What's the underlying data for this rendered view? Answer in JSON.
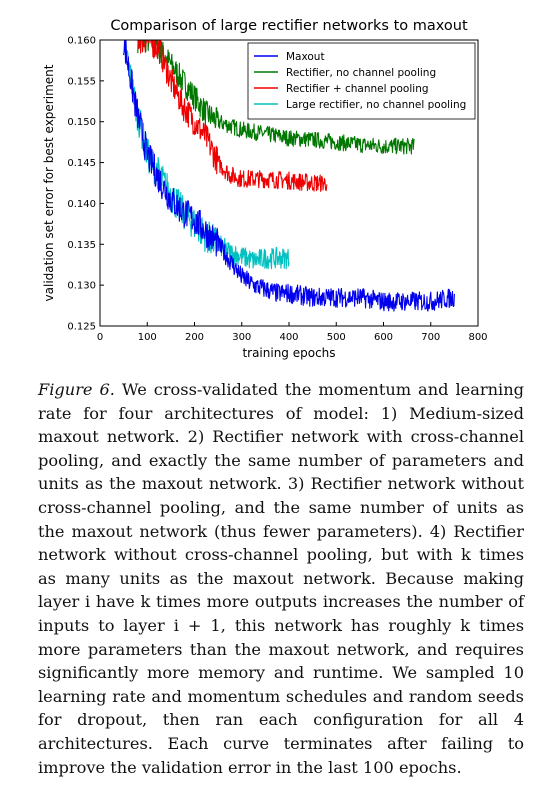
{
  "chart_data": {
    "type": "line",
    "title": "Comparison of large rectifier networks to maxout",
    "xlabel": "training epochs",
    "ylabel": "validation set error for best experiment",
    "xlim": [
      0,
      800
    ],
    "ylim": [
      0.125,
      0.16
    ],
    "x_ticks": [
      "0",
      "100",
      "200",
      "300",
      "400",
      "500",
      "600",
      "700",
      "800"
    ],
    "y_ticks": [
      "0.125",
      "0.130",
      "0.135",
      "0.140",
      "0.145",
      "0.150",
      "0.155",
      "0.160"
    ],
    "legend_position": "top-right",
    "grid": false,
    "series": [
      {
        "name": "Maxout",
        "color": "#0000ee",
        "x": [
          50,
          75,
          100,
          125,
          150,
          175,
          200,
          225,
          250,
          275,
          300,
          325,
          350,
          375,
          400,
          450,
          500,
          550,
          600,
          650,
          700,
          750
        ],
        "y": [
          0.16,
          0.152,
          0.146,
          0.143,
          0.1405,
          0.139,
          0.138,
          0.1365,
          0.135,
          0.133,
          0.131,
          0.13,
          0.1295,
          0.129,
          0.129,
          0.1285,
          0.1285,
          0.1285,
          0.128,
          0.128,
          0.128,
          0.1285
        ],
        "noise": 0.0012
      },
      {
        "name": "Rectifier, no channel pooling",
        "color": "#007700",
        "x": [
          80,
          100,
          125,
          150,
          175,
          200,
          225,
          250,
          275,
          300,
          350,
          400,
          450,
          500,
          550,
          600,
          650,
          665
        ],
        "y": [
          0.16,
          0.16,
          0.159,
          0.157,
          0.155,
          0.153,
          0.151,
          0.15,
          0.1495,
          0.149,
          0.1485,
          0.148,
          0.1478,
          0.1475,
          0.1472,
          0.147,
          0.147,
          0.147
        ],
        "noise": 0.001
      },
      {
        "name": "Rectifier + channel pooling",
        "color": "#ee0000",
        "x": [
          80,
          100,
          125,
          150,
          175,
          200,
          225,
          250,
          275,
          300,
          350,
          400,
          450,
          480
        ],
        "y": [
          0.16,
          0.16,
          0.159,
          0.155,
          0.152,
          0.15,
          0.148,
          0.145,
          0.1435,
          0.143,
          0.143,
          0.1428,
          0.1425,
          0.1425
        ],
        "noise": 0.0011
      },
      {
        "name": "Large rectifier, no channel pooling",
        "color": "#00c0c0",
        "x": [
          50,
          60,
          75,
          100,
          125,
          150,
          175,
          200,
          225,
          250,
          275,
          300,
          325,
          350,
          375,
          400
        ],
        "y": [
          0.16,
          0.157,
          0.152,
          0.146,
          0.1435,
          0.141,
          0.139,
          0.1375,
          0.136,
          0.135,
          0.134,
          0.1335,
          0.133,
          0.1333,
          0.1333,
          0.1333
        ],
        "noise": 0.0013
      }
    ]
  },
  "caption": {
    "label": "Figure 6.",
    "text": "We cross-validated the momentum and learning rate for four architectures of model: 1) Medium-sized maxout network. 2) Rectifier network with cross-channel pooling, and exactly the same number of parameters and units as the maxout network. 3) Rectifier network without cross-channel pooling, and the same number of units as the maxout network (thus fewer parameters). 4) Rectifier network without cross-channel pooling, but with k times as many units as the maxout network. Because making layer i have k times more outputs increases the number of inputs to layer i + 1, this network has roughly k times more parameters than the maxout network, and requires significantly more memory and runtime. We sampled 10 learning rate and momentum schedules and random seeds for dropout, then ran each configuration for all 4 architectures. Each curve terminates after failing to improve the validation error in the last 100 epochs."
  }
}
